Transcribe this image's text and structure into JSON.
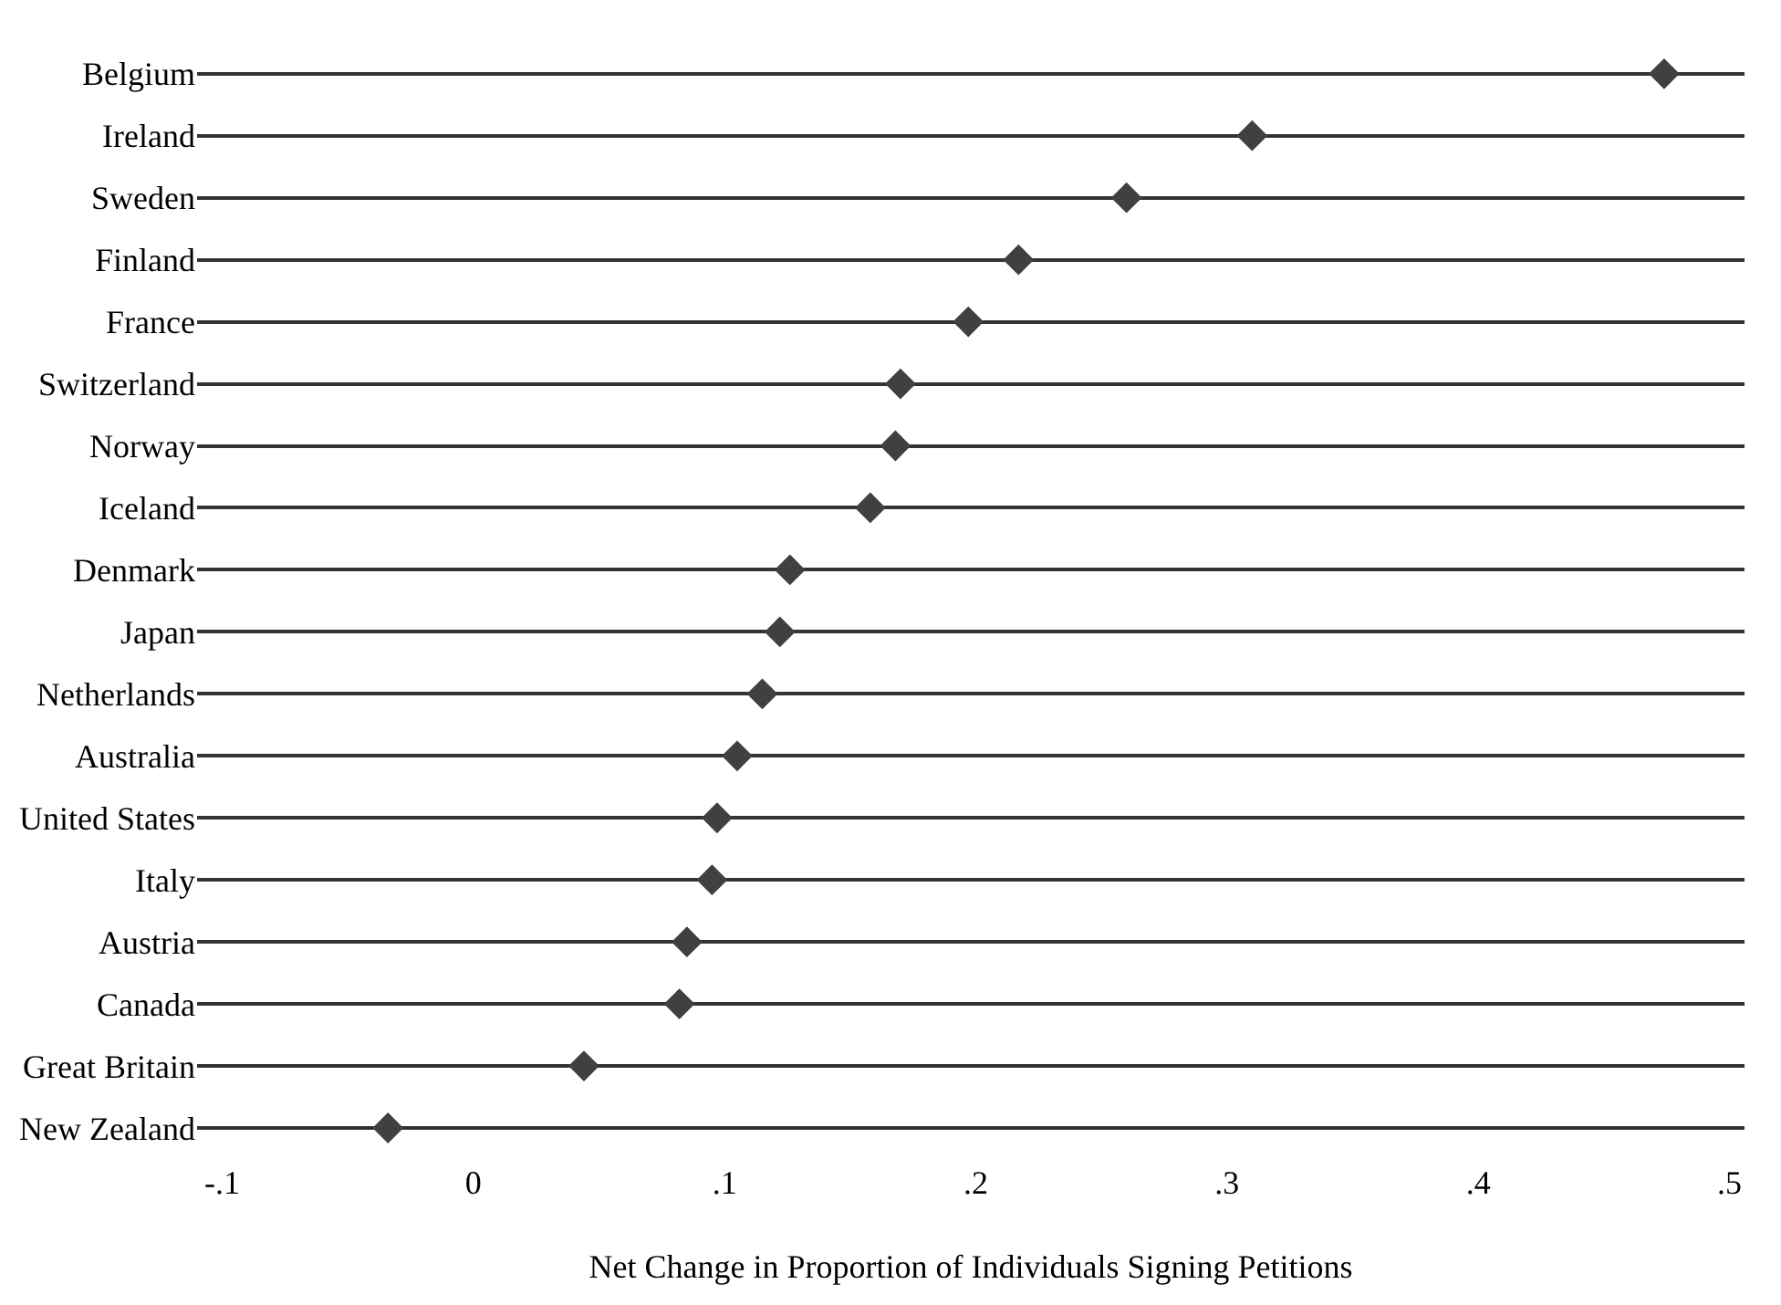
{
  "chart_data": {
    "type": "scatter",
    "orientation": "horizontal",
    "xlabel": "Net Change in Proportion of Individuals Signing Petitions",
    "categories": [
      "Belgium",
      "Ireland",
      "Sweden",
      "Finland",
      "France",
      "Switzerland",
      "Norway",
      "Iceland",
      "Denmark",
      "Japan",
      "Netherlands",
      "Australia",
      "United States",
      "Italy",
      "Austria",
      "Canada",
      "Great Britain",
      "New Zealand"
    ],
    "values": [
      0.474,
      0.31,
      0.26,
      0.217,
      0.197,
      0.17,
      0.168,
      0.158,
      0.126,
      0.122,
      0.115,
      0.105,
      0.097,
      0.095,
      0.085,
      0.082,
      0.044,
      -0.034
    ],
    "color": "#404040",
    "marker": "diamond",
    "grid": "y",
    "xlim": [
      -0.11,
      0.506
    ],
    "xticks": [
      {
        "value": -0.1,
        "label": "-.1"
      },
      0,
      {
        "value": 0.1,
        "label": ".1"
      },
      {
        "value": 0.2,
        "label": ".2"
      },
      {
        "value": 0.3,
        "label": ".3"
      },
      {
        "value": 0.4,
        "label": ".4"
      },
      {
        "value": 0.5,
        "label": ".5"
      }
    ]
  }
}
